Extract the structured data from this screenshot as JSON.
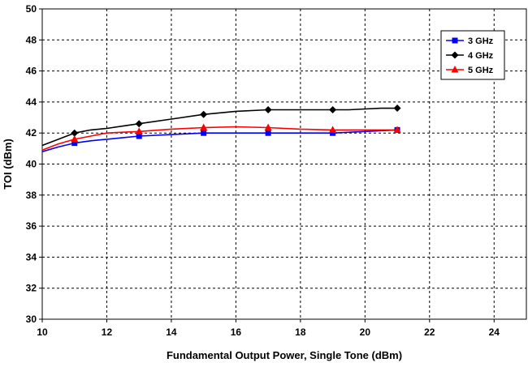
{
  "chart_data": {
    "type": "line",
    "xlabel": "Fundamental Output Power, Single Tone (dBm)",
    "ylabel": "TOI (dBm)",
    "xlim": [
      10,
      25
    ],
    "ylim": [
      30,
      50
    ],
    "xticks": [
      10,
      12,
      14,
      16,
      18,
      20,
      22,
      24
    ],
    "yticks": [
      30,
      32,
      34,
      36,
      38,
      40,
      42,
      44,
      46,
      48,
      50
    ],
    "grid": true,
    "legend_position": "top-right",
    "series": [
      {
        "name": "3 GHz",
        "color": "#0000ff",
        "marker": "square",
        "x": [
          10,
          10.5,
          11,
          11.5,
          12,
          12.5,
          13,
          14,
          15,
          16,
          17,
          18,
          19,
          20,
          21
        ],
        "y": [
          40.8,
          41.1,
          41.35,
          41.5,
          41.6,
          41.7,
          41.8,
          41.9,
          42.0,
          42.0,
          42.0,
          42.0,
          42.0,
          42.1,
          42.2
        ],
        "markers_x": [
          11,
          13,
          15,
          17,
          19,
          21
        ],
        "markers_y": [
          41.35,
          41.8,
          42.0,
          42.0,
          42.0,
          42.2
        ]
      },
      {
        "name": "4 GHz",
        "color": "#000000",
        "marker": "diamond",
        "x": [
          10,
          10.5,
          11,
          11.5,
          12,
          12.5,
          13,
          14,
          15,
          16,
          17,
          18,
          19,
          19.5,
          20,
          20.5,
          21
        ],
        "y": [
          41.2,
          41.6,
          42.0,
          42.2,
          42.3,
          42.45,
          42.6,
          42.9,
          43.2,
          43.4,
          43.5,
          43.5,
          43.5,
          43.5,
          43.55,
          43.6,
          43.6
        ],
        "markers_x": [
          11,
          13,
          15,
          17,
          19,
          21
        ],
        "markers_y": [
          42.0,
          42.6,
          43.2,
          43.5,
          43.5,
          43.6
        ]
      },
      {
        "name": "5 GHz",
        "color": "#ff0000",
        "marker": "triangle",
        "x": [
          10,
          10.5,
          11,
          11.5,
          12,
          12.5,
          13,
          14,
          15,
          16,
          17,
          18,
          19,
          20,
          21
        ],
        "y": [
          40.9,
          41.3,
          41.6,
          41.8,
          42.0,
          42.05,
          42.1,
          42.25,
          42.35,
          42.4,
          42.35,
          42.25,
          42.2,
          42.2,
          42.2
        ],
        "markers_x": [
          11,
          13,
          15,
          17,
          19,
          21
        ],
        "markers_y": [
          41.6,
          42.1,
          42.35,
          42.35,
          42.2,
          42.2
        ]
      }
    ]
  }
}
